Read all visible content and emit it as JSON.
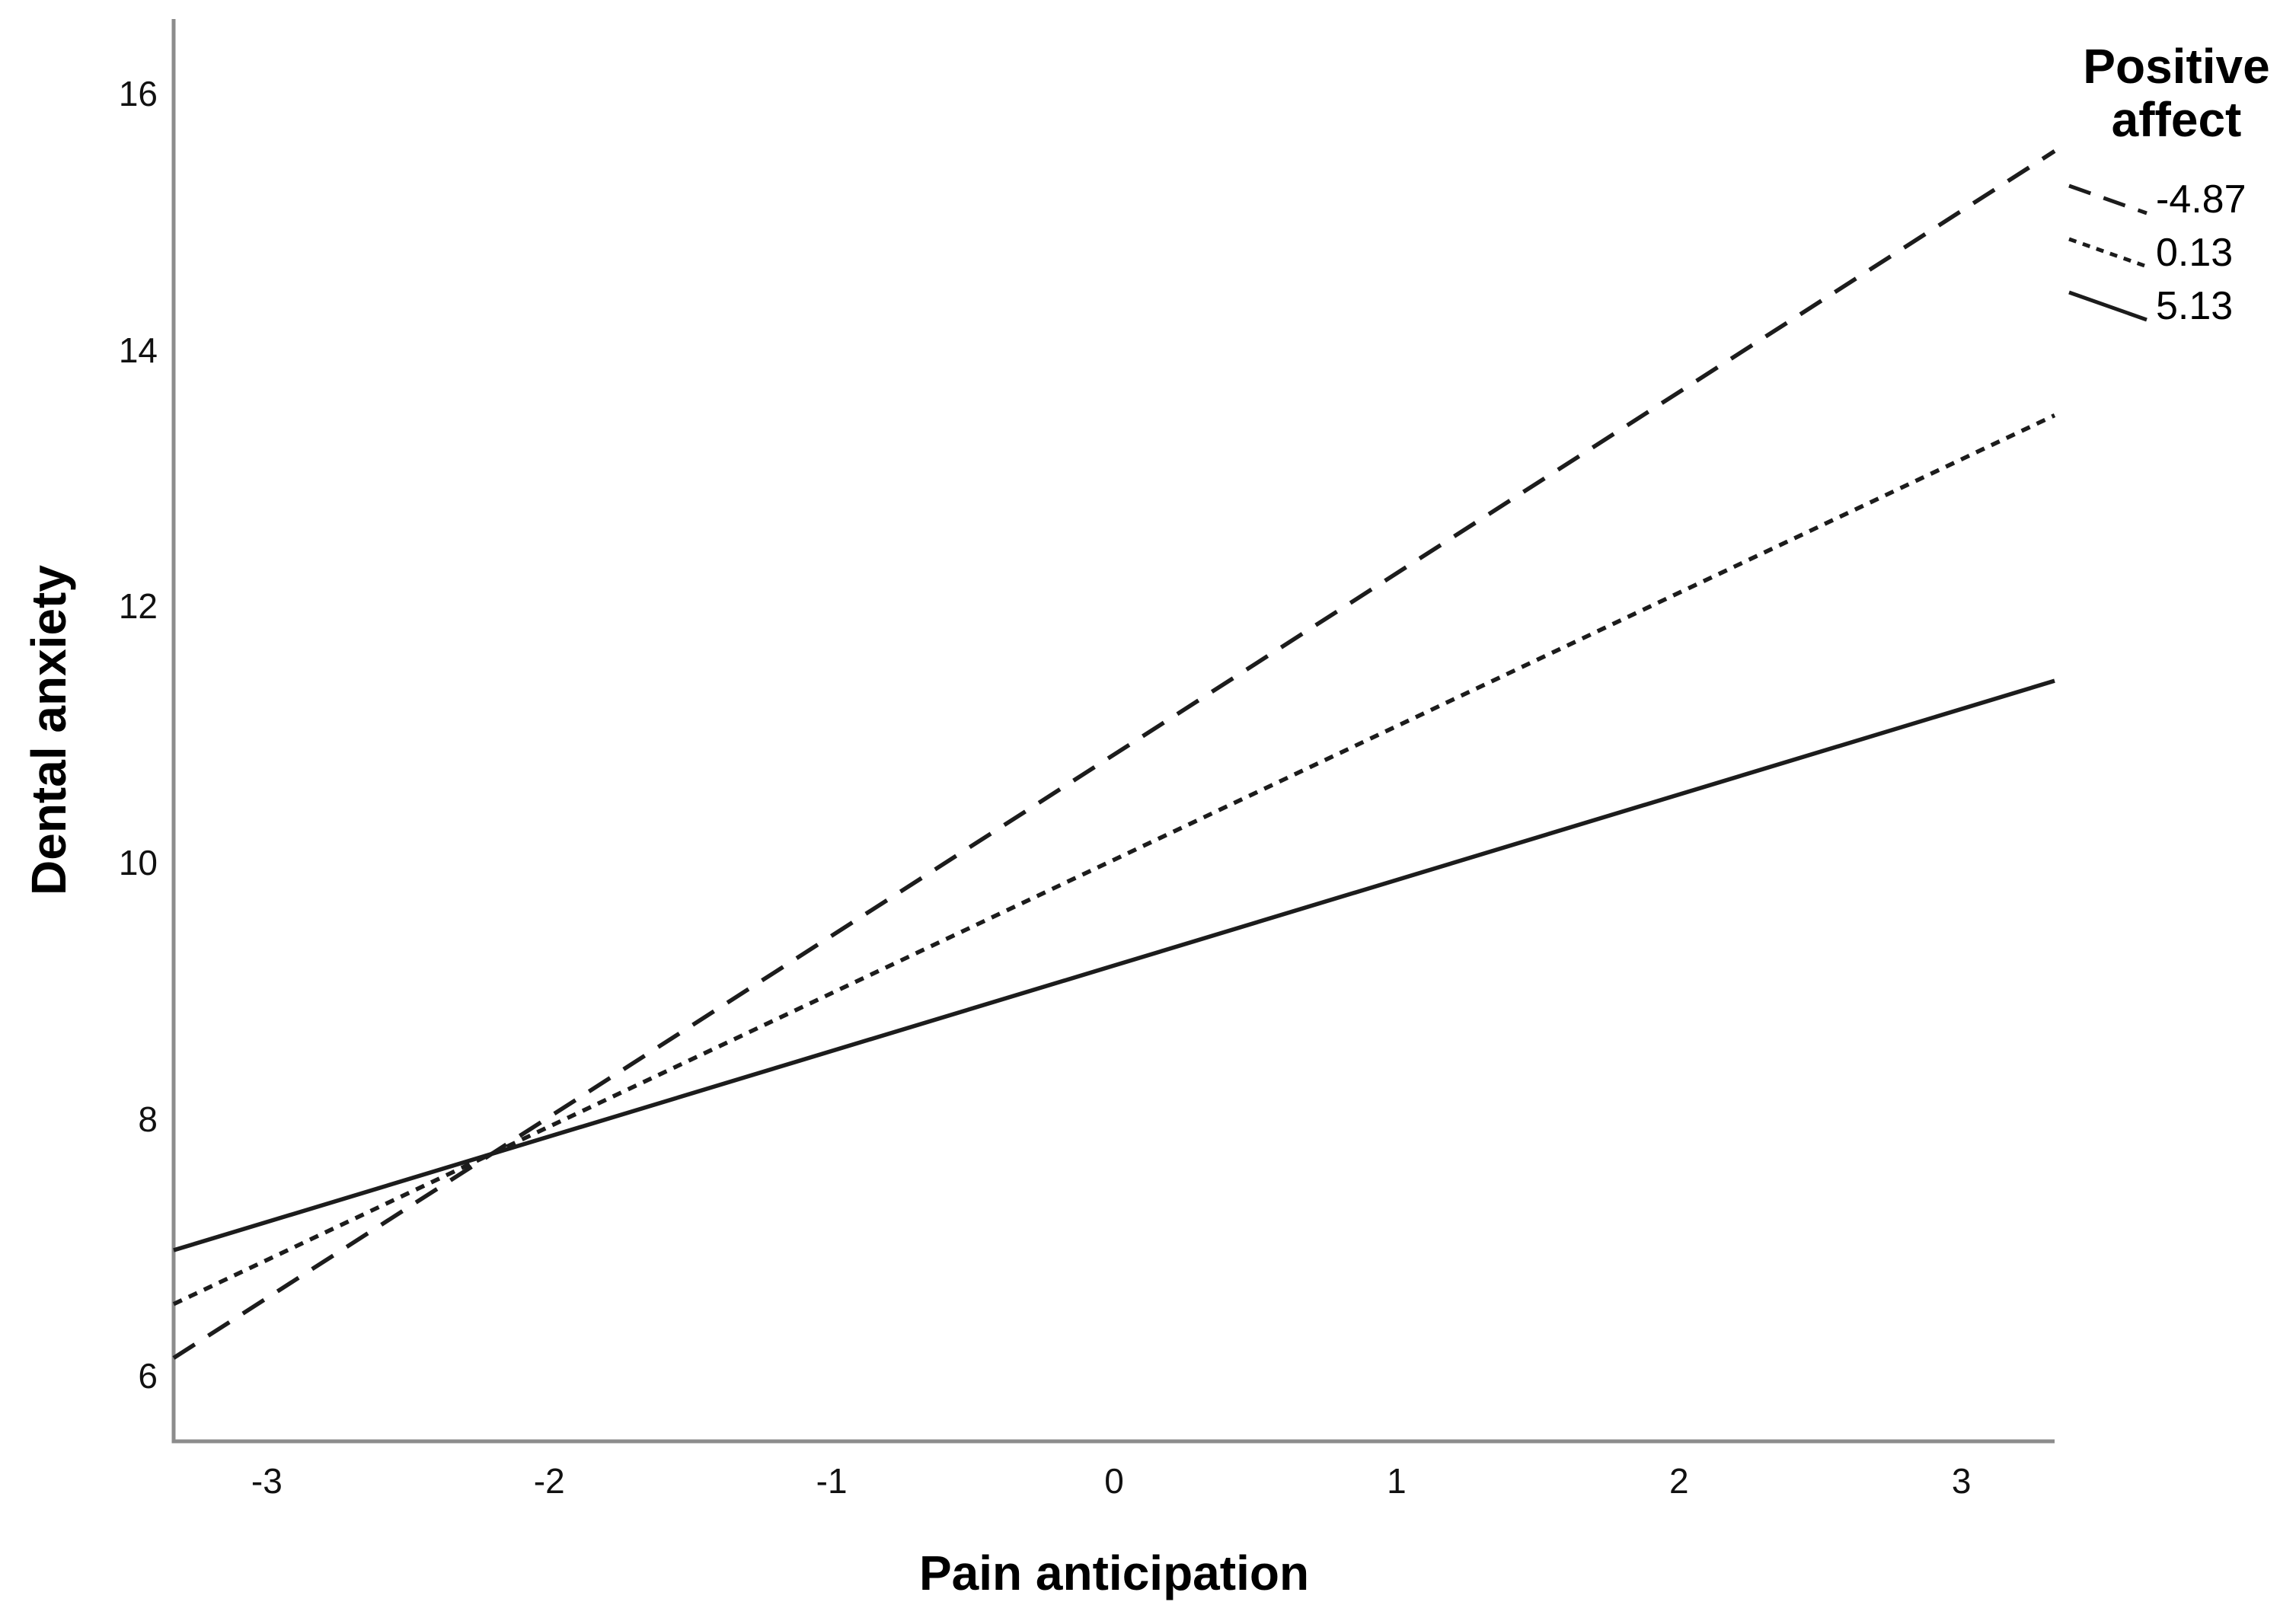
{
  "chart_data": {
    "type": "line",
    "title": "",
    "xlabel": "Pain anticipation",
    "ylabel": "Dental anxiety",
    "x_ticks": [
      "-3",
      "-2",
      "-1",
      "0",
      "1",
      "2",
      "3"
    ],
    "x_tick_values": [
      -3,
      -2,
      -1,
      0,
      1,
      2,
      3
    ],
    "y_ticks": [
      "6",
      "8",
      "10",
      "12",
      "14",
      "16"
    ],
    "y_tick_values": [
      6,
      8,
      10,
      12,
      14,
      16
    ],
    "xlim": [
      -3.33,
      3.33
    ],
    "ylim": [
      5.49,
      16.58
    ],
    "grid": false,
    "legend": {
      "title": "Positive affect",
      "position": "top-right"
    },
    "series": [
      {
        "name": "-4.87",
        "line_style": "long-dash",
        "x": [
          -3.33,
          3.33
        ],
        "y": [
          6.14,
          15.55
        ]
      },
      {
        "name": "0.13",
        "line_style": "short-dash",
        "x": [
          -3.33,
          3.33
        ],
        "y": [
          6.56,
          13.49
        ]
      },
      {
        "name": "5.13",
        "line_style": "solid",
        "x": [
          -3.33,
          3.33
        ],
        "y": [
          6.98,
          11.42
        ]
      }
    ],
    "colors": {
      "line": "#1c1c1c",
      "axis": "#8c8c8c",
      "background": "#ffffff",
      "text": "#000000"
    }
  }
}
